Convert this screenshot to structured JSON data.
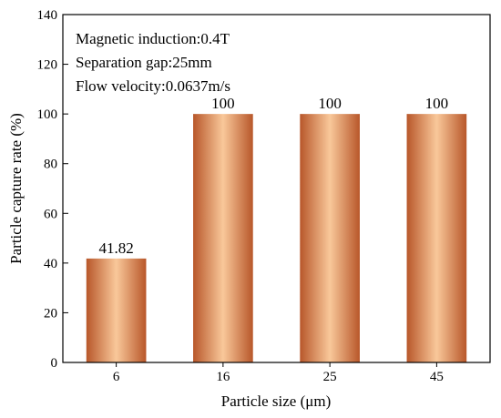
{
  "chart_data": {
    "type": "bar",
    "categories": [
      "6",
      "16",
      "25",
      "45"
    ],
    "values": [
      41.82,
      100,
      100,
      100
    ],
    "data_labels": [
      "41.82",
      "100",
      "100",
      "100"
    ],
    "title": "",
    "xlabel": "Particle size (μm)",
    "ylabel": "Particle capture rate (%)",
    "ylim": [
      0,
      140
    ],
    "yticks": [
      0,
      20,
      40,
      60,
      80,
      100,
      120,
      140
    ],
    "grid": false,
    "legend": "none",
    "annotations": [
      "Magnetic induction:0.4T",
      "Separation gap:25mm",
      "Flow velocity:0.0637m/s"
    ],
    "bar_colors": {
      "edge": "#b8572a",
      "center": "#f9c89a"
    }
  }
}
